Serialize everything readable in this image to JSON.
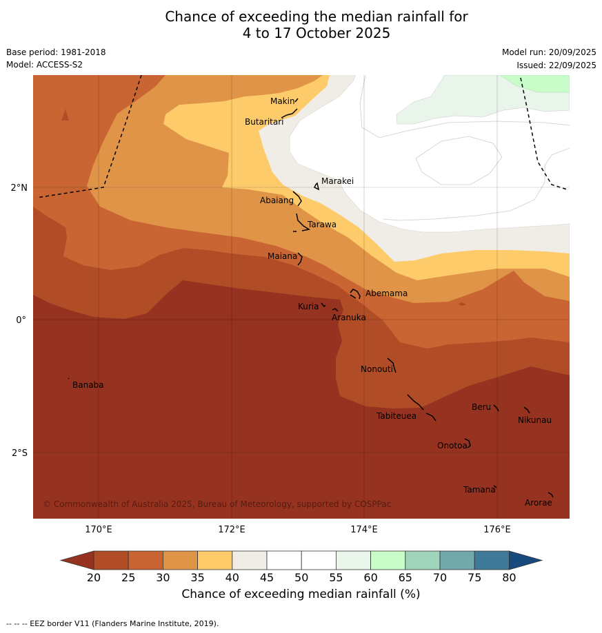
{
  "title": {
    "line1": "Chance of exceeding the median rainfall for",
    "line2": "4 to 17 October 2025"
  },
  "meta": {
    "base_period": "Base period: 1981-2018",
    "model": "Model: ACCESS-S2",
    "model_run": "Model run: 20/09/2025",
    "issued": "Issued: 22/09/2025"
  },
  "axes": {
    "x_ticks": [
      "170°E",
      "172°E",
      "174°E",
      "176°E"
    ],
    "y_ticks": [
      "2°N",
      "0°",
      "2°S"
    ]
  },
  "copyright": "© Commonwealth of Australia 2025, Bureau of Meteorology, supported by COSPPac",
  "islands": [
    "Makin",
    "Butaritari",
    "Marakei",
    "Abaiang",
    "Tarawa",
    "Maiana",
    "Abemama",
    "Kuria",
    "Aranuka",
    "Banaba",
    "Nonouti",
    "Beru",
    "Nikunau",
    "Tabiteuea",
    "Onotoa",
    "Tamana",
    "Arorae"
  ],
  "colorbar": {
    "ticks": [
      "20",
      "25",
      "30",
      "35",
      "40",
      "45",
      "50",
      "55",
      "60",
      "65",
      "70",
      "75",
      "80"
    ],
    "colors": [
      "#963220",
      "#b04d27",
      "#c96532",
      "#e09447",
      "#fdcb69",
      "#f0ece6",
      "#ffffff",
      "#ffffff",
      "#e9f5ea",
      "#c8fcc8",
      "#9fd4bb",
      "#72a8aa",
      "#3f7a99",
      "#174a7f"
    ],
    "label": "Chance of exceeding median rainfall (%)"
  },
  "footer": "--  --  -- EEZ border V11 (Flanders Marine Institute, 2019)."
}
